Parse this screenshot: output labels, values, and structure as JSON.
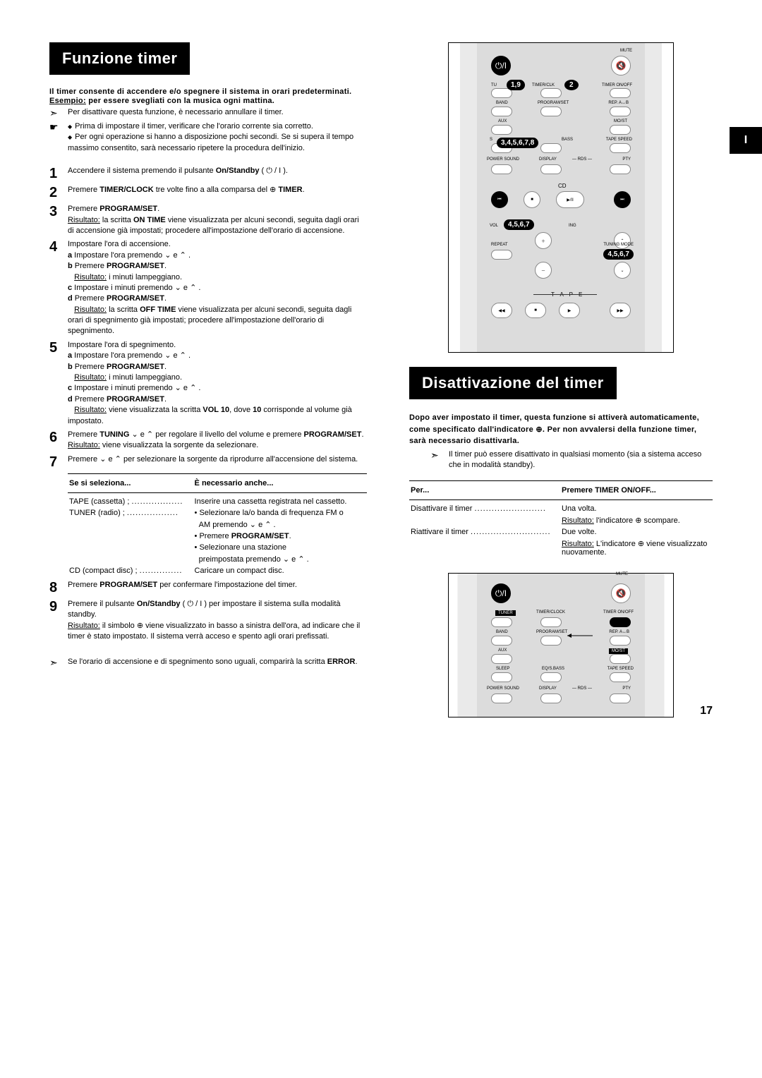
{
  "page_number": "17",
  "tab_marker": "I",
  "section1": {
    "title": "Funzione timer",
    "intro1": "Il timer consente di accendere e/o spegnere il sistema in orari predeterminati.",
    "intro2_label": "Esempio:",
    "intro2": " per essere svegliati con la musica ogni mattina.",
    "notes": [
      {
        "icon": "➣",
        "text": "Per disattivare questa funzione, è necessario annullare il timer."
      },
      {
        "icon": "☛",
        "bullets": [
          "Prima di impostare il timer, verificare che l'orario corrente sia corretto.",
          "Per ogni operazione si hanno a disposizione pochi secondi. Se si supera il tempo massimo consentito, sarà necessario ripetere la procedura dell'inizio."
        ]
      }
    ],
    "steps": [
      {
        "n": "1",
        "html": "Accendere il sistema premendo il pulsante <b>On/Standby</b> ( ⏻ / I )."
      },
      {
        "n": "2",
        "html": "Premere <b>TIMER/CLOCK</b> tre volte fino a alla comparsa del ⊕ <b>TIMER</b>."
      },
      {
        "n": "3",
        "html": "Premere <b>PROGRAM/SET</b>.<br><span class='result'>Risultato:</span> la scritta <b>ON TIME</b> viene visualizzata per alcuni secondi, seguita dagli orari di accensione già impostati; procedere all'impostazione dell'orario di accensione."
      },
      {
        "n": "4",
        "html": "Impostare l'ora di accensione.<br><b>a</b> Impostare l'ora premendo ⌄ e ⌃ .<br><b>b</b> Premere <b>PROGRAM/SET</b>.<br>&nbsp;&nbsp;&nbsp;<span class='result'>Risultato:</span> i minuti lampeggiano.<br><b>c</b> Impostare i minuti premendo ⌄ e ⌃ .<br><b>d</b> Premere <b>PROGRAM/SET</b>.<br>&nbsp;&nbsp;&nbsp;<span class='result'>Risultato:</span> la scritta <b>OFF TIME</b> viene visualizzata per alcuni secondi, seguita dagli orari di spegnimento già impostati; procedere all'impostazione dell'orario di spegnimento."
      },
      {
        "n": "5",
        "html": "Impostare l'ora di spegnimento.<br><b>a</b> Impostare l'ora premendo ⌄ e ⌃ .<br><b>b</b> Premere <b>PROGRAM/SET</b>.<br>&nbsp;&nbsp;&nbsp;<span class='result'>Risultato:</span> i minuti lampeggiano.<br><b>c</b> Impostare i minuti premendo ⌄ e ⌃ .<br><b>d</b> Premere <b>PROGRAM/SET</b>.<br>&nbsp;&nbsp;&nbsp;<span class='result'>Risultato:</span> viene visualizzata la scritta <b>VOL 10</b>, dove <b>10</b> corrisponde al volume già impostato."
      },
      {
        "n": "6",
        "html": "Premere <b>TUNING</b> ⌄ e ⌃ per regolare il livello del volume e premere <b>PROGRAM/SET</b>.<br><span class='result'>Risultato:</span> viene visualizzata la sorgente da selezionare."
      },
      {
        "n": "7",
        "html": "Premere ⌄ e ⌃ per selezionare la sorgente da riprodurre all'accensione del sistema."
      }
    ],
    "table": {
      "h1": "Se si seleziona...",
      "h2": "È necessario anche...",
      "rows": [
        {
          "c1": "TAPE (cassetta) ;",
          "dots": "..................",
          "c2": "Inserire una cassetta registrata nel cassetto."
        },
        {
          "c1": "TUNER (radio) ;",
          "dots": "..................",
          "c2": "• Selezionare la/o banda di frequenza FM o"
        },
        {
          "c1": "",
          "dots": "",
          "c2": "&nbsp;&nbsp;AM premendo ⌄ e ⌃ ."
        },
        {
          "c1": "",
          "dots": "",
          "c2": "• Premere <b>PROGRAM/SET</b>."
        },
        {
          "c1": "",
          "dots": "",
          "c2": "• Selezionare una stazione"
        },
        {
          "c1": "",
          "dots": "",
          "c2": "&nbsp;&nbsp;preimpostata premendo ⌄ e ⌃ ."
        },
        {
          "c1": "CD (compact disc) ;",
          "dots": "...............",
          "c2": "Caricare un compact disc."
        }
      ]
    },
    "step8": {
      "n": "8",
      "html": "Premere <b>PROGRAM/SET</b> per confermare l'impostazione del timer."
    },
    "step9": {
      "n": "9",
      "html": "Premere il pulsante <b>On/Standby</b> ( ⏻ / I ) per impostare il sistema sulla modalità standby.<br><span class='result'>Risultato:</span> il simbolo ⊕ viene visualizzato in basso a sinistra dell'ora, ad indicare che il timer è stato impostato. Il sistema verrà acceso e spento agli orari prefissati."
    },
    "footnote": {
      "icon": "➣",
      "text": "Se l'orario di accensione e di spegnimento sono uguali, comparirà la scritta <b>ERROR</b>."
    }
  },
  "section2": {
    "title": "Disattivazione del timer",
    "intro": "Dopo aver impostato il timer, questa funzione si attiverà automaticamente, come specificato dall'indicatore ⊕. Per non avvalersi della funzione timer, sarà necessario disattivarla.",
    "note": {
      "icon": "➣",
      "text": "Il timer può essere disattivato in qualsiasi momento (sia a sistema acceso che in modalità standby)."
    },
    "table": {
      "h1": "Per...",
      "h2": "Premere TIMER ON/OFF...",
      "rows": [
        {
          "c1": "Disattivare il timer",
          "dots": ".........................",
          "c2": "Una volta.",
          "result": "<span class='result'>Risultato:</span> l'indicatore ⊕ scompare."
        },
        {
          "c1": "Riattivare il timer",
          "dots": "............................",
          "c2": "Due volte.",
          "result": "<span class='result'>Risultato:</span> L'indicatore ⊕ viene visualizzato nuovamente."
        }
      ]
    }
  },
  "remote1": {
    "labels": {
      "mute": "MUTE",
      "tu": "TU",
      "timerclk": "TIMER/CLK",
      "timeronoff": "TIMER ON/OFF",
      "band": "BAND",
      "aux": "AUX",
      "programset": "PROGRAM/SET",
      "repa": "REP. A↔B",
      "moist": "MO/ST",
      "s": "S",
      "bass": "BASS",
      "tapespeed": "TAPE SPEED",
      "powersound": "POWER SOUND",
      "display": "DISPLAY",
      "rds": "RDS",
      "pty": "PTY",
      "cd": "CD",
      "vol": "VOL",
      "ing": "ING",
      "repeat": "REPEAT",
      "tuningmode": "TUNING MODE",
      "tape": "T A P E"
    },
    "callouts": {
      "c1": "1,9",
      "c2": "2",
      "c3": "3,4,5,6,7,8",
      "c4": "4,5,6,7",
      "c5": "4,5,6,7"
    }
  },
  "remote2": {
    "labels": {
      "mute": "MUTE",
      "tuner": "TUNER",
      "timerclock": "TIMER/CLOCK",
      "timeronoff": "TIMER ON/OFF",
      "band": "BAND",
      "aux": "AUX",
      "programset": "PROGRAM/SET",
      "repa": "REP. A↔B",
      "moist": "MO/ST",
      "sleep": "SLEEP",
      "eqsbass": "EQ/S.BASS",
      "tapespeed": "TAPE SPEED",
      "powersound": "POWER SOUND",
      "display": "DISPLAY",
      "rds": "RDS",
      "pty": "PTY"
    }
  }
}
